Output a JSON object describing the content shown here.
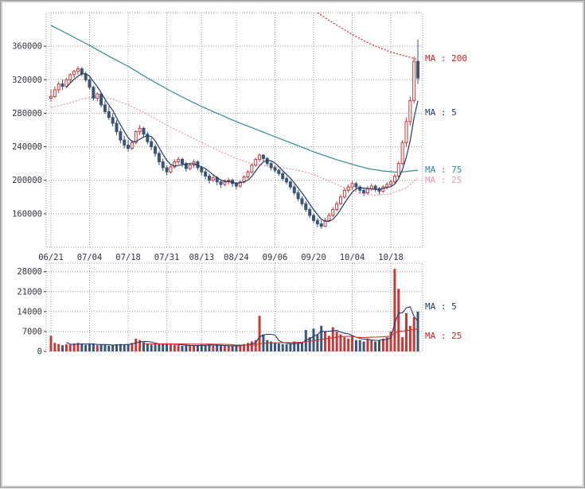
{
  "window": {
    "background": "#ffffff",
    "border_color": "#c9c9c9"
  },
  "chart_data": {
    "type": "candlestick+volume",
    "title": "",
    "grid": true,
    "price_panel": {
      "ylim": [
        120000,
        400000
      ],
      "yticks": [
        160000,
        200000,
        240000,
        280000,
        320000,
        360000
      ]
    },
    "volume_panel": {
      "ylim": [
        0,
        31000
      ],
      "yticks": [
        0,
        7000,
        14000,
        21000,
        28000
      ]
    },
    "xticks": [
      {
        "index": 0,
        "label": "06/21"
      },
      {
        "index": 10,
        "label": "07/04"
      },
      {
        "index": 20,
        "label": "07/18"
      },
      {
        "index": 30,
        "label": "07/31"
      },
      {
        "index": 39,
        "label": "08/13"
      },
      {
        "index": 48,
        "label": "08/24"
      },
      {
        "index": 58,
        "label": "09/06"
      },
      {
        "index": 68,
        "label": "09/20"
      },
      {
        "index": 78,
        "label": "10/04"
      },
      {
        "index": 88,
        "label": "10/18"
      }
    ],
    "candles": [
      [
        298000,
        308000,
        294000,
        300000
      ],
      [
        300000,
        312000,
        298000,
        308000
      ],
      [
        308000,
        318000,
        304000,
        315000
      ],
      [
        315000,
        320000,
        308000,
        312000
      ],
      [
        312000,
        322000,
        310000,
        320000
      ],
      [
        320000,
        328000,
        316000,
        326000
      ],
      [
        326000,
        332000,
        322000,
        330000
      ],
      [
        330000,
        336000,
        326000,
        333000
      ],
      [
        333000,
        335000,
        324000,
        327000
      ],
      [
        327000,
        330000,
        317000,
        320000
      ],
      [
        320000,
        322000,
        308000,
        311000
      ],
      [
        311000,
        313000,
        295000,
        298000
      ],
      [
        298000,
        305000,
        294000,
        303000
      ],
      [
        303000,
        304000,
        287000,
        290000
      ],
      [
        290000,
        295000,
        279000,
        282000
      ],
      [
        282000,
        288000,
        272000,
        275000
      ],
      [
        275000,
        280000,
        264000,
        268000
      ],
      [
        268000,
        272000,
        254000,
        258000
      ],
      [
        258000,
        262000,
        244000,
        248000
      ],
      [
        248000,
        253000,
        238000,
        242000
      ],
      [
        242000,
        248000,
        234000,
        238000
      ],
      [
        238000,
        248000,
        236000,
        245000
      ],
      [
        245000,
        260000,
        243000,
        258000
      ],
      [
        258000,
        266000,
        254000,
        262000
      ],
      [
        262000,
        264000,
        251000,
        255000
      ],
      [
        255000,
        258000,
        243000,
        246000
      ],
      [
        246000,
        250000,
        236000,
        240000
      ],
      [
        240000,
        243000,
        228000,
        232000
      ],
      [
        232000,
        235000,
        218000,
        222000
      ],
      [
        222000,
        226000,
        211000,
        215000
      ],
      [
        215000,
        218000,
        206000,
        210000
      ],
      [
        210000,
        219000,
        208000,
        216000
      ],
      [
        216000,
        225000,
        214000,
        222000
      ],
      [
        222000,
        228000,
        219000,
        225000
      ],
      [
        225000,
        227000,
        216000,
        220000
      ],
      [
        220000,
        222000,
        210000,
        214000
      ],
      [
        214000,
        221000,
        212000,
        218000
      ],
      [
        218000,
        225000,
        215000,
        222000
      ],
      [
        222000,
        224000,
        212000,
        215000
      ],
      [
        215000,
        217000,
        206000,
        210000
      ],
      [
        210000,
        213000,
        201000,
        205000
      ],
      [
        205000,
        208000,
        196000,
        200000
      ],
      [
        200000,
        206000,
        198000,
        203000
      ],
      [
        203000,
        205000,
        194000,
        198000
      ],
      [
        198000,
        201000,
        191000,
        195000
      ],
      [
        195000,
        201000,
        193000,
        198000
      ],
      [
        198000,
        203000,
        195000,
        200000
      ],
      [
        200000,
        202000,
        192000,
        196000
      ],
      [
        196000,
        198000,
        189000,
        193000
      ],
      [
        193000,
        200000,
        191000,
        198000
      ],
      [
        198000,
        206000,
        196000,
        204000
      ],
      [
        204000,
        212000,
        202000,
        210000
      ],
      [
        210000,
        220000,
        208000,
        218000
      ],
      [
        218000,
        227000,
        216000,
        225000
      ],
      [
        225000,
        232000,
        222000,
        230000
      ],
      [
        230000,
        231000,
        222000,
        226000
      ],
      [
        226000,
        228000,
        217000,
        220000
      ],
      [
        220000,
        222000,
        212000,
        215000
      ],
      [
        215000,
        218000,
        209000,
        212000
      ],
      [
        212000,
        214000,
        205000,
        208000
      ],
      [
        208000,
        210000,
        199000,
        202000
      ],
      [
        202000,
        205000,
        195000,
        198000
      ],
      [
        198000,
        200000,
        189000,
        192000
      ],
      [
        192000,
        195000,
        182000,
        185000
      ],
      [
        185000,
        188000,
        175000,
        178000
      ],
      [
        178000,
        181000,
        169000,
        172000
      ],
      [
        172000,
        175000,
        162000,
        165000
      ],
      [
        165000,
        168000,
        155000,
        158000
      ],
      [
        158000,
        161000,
        149000,
        152000
      ],
      [
        152000,
        155000,
        144000,
        148000
      ],
      [
        148000,
        152000,
        142000,
        145000
      ],
      [
        145000,
        155000,
        144000,
        152000
      ],
      [
        152000,
        161000,
        150000,
        158000
      ],
      [
        158000,
        168000,
        156000,
        165000
      ],
      [
        165000,
        175000,
        163000,
        172000
      ],
      [
        172000,
        183000,
        170000,
        180000
      ],
      [
        180000,
        191000,
        178000,
        188000
      ],
      [
        188000,
        195000,
        185000,
        192000
      ],
      [
        192000,
        199000,
        189000,
        196000
      ],
      [
        196000,
        198000,
        188000,
        192000
      ],
      [
        192000,
        194000,
        184000,
        188000
      ],
      [
        188000,
        190000,
        181000,
        185000
      ],
      [
        185000,
        193000,
        183000,
        190000
      ],
      [
        190000,
        196000,
        187000,
        193000
      ],
      [
        193000,
        195000,
        186000,
        190000
      ],
      [
        190000,
        192000,
        183000,
        187000
      ],
      [
        187000,
        194000,
        185000,
        192000
      ],
      [
        192000,
        198000,
        189000,
        195000
      ],
      [
        195000,
        201000,
        192000,
        198000
      ],
      [
        198000,
        208000,
        196000,
        205000
      ],
      [
        205000,
        223000,
        203000,
        220000
      ],
      [
        220000,
        248000,
        218000,
        245000
      ],
      [
        245000,
        275000,
        240000,
        270000
      ],
      [
        270000,
        300000,
        265000,
        295000
      ],
      [
        295000,
        348000,
        292000,
        342000
      ],
      [
        342000,
        368000,
        315000,
        322000
      ]
    ],
    "volumes": [
      5500,
      3000,
      2600,
      2200,
      2500,
      2400,
      2800,
      3000,
      2500,
      2300,
      2500,
      2800,
      2200,
      2400,
      2300,
      2000,
      2200,
      2500,
      2600,
      2400,
      2600,
      3000,
      4500,
      4000,
      3200,
      2600,
      2400,
      2500,
      2700,
      2600,
      2800,
      2400,
      2300,
      2200,
      2000,
      2100,
      2000,
      2200,
      2100,
      2300,
      2200,
      2400,
      2000,
      2100,
      2000,
      1900,
      2000,
      1900,
      2000,
      2200,
      2600,
      3000,
      3500,
      4000,
      12500,
      6000,
      4000,
      3500,
      3000,
      2800,
      2600,
      2500,
      2600,
      3500,
      3000,
      3200,
      7500,
      5000,
      8000,
      6000,
      9000,
      7000,
      5500,
      8500,
      7000,
      6000,
      5000,
      4500,
      5500,
      4000,
      4000,
      3500,
      4500,
      4000,
      3500,
      4000,
      4500,
      5000,
      7000,
      29000,
      22000,
      5000,
      13500,
      9000,
      12000,
      14000
    ],
    "ma5_period": 5,
    "ma25_points": [
      {
        "i": 0,
        "v": 287000
      },
      {
        "i": 4,
        "v": 291000
      },
      {
        "i": 8,
        "v": 297000
      },
      {
        "i": 12,
        "v": 300000
      },
      {
        "i": 16,
        "v": 297000
      },
      {
        "i": 20,
        "v": 290000
      },
      {
        "i": 24,
        "v": 281000
      },
      {
        "i": 28,
        "v": 271000
      },
      {
        "i": 32,
        "v": 261000
      },
      {
        "i": 36,
        "v": 252000
      },
      {
        "i": 40,
        "v": 243000
      },
      {
        "i": 44,
        "v": 234000
      },
      {
        "i": 48,
        "v": 226000
      },
      {
        "i": 52,
        "v": 220000
      },
      {
        "i": 56,
        "v": 217000
      },
      {
        "i": 60,
        "v": 215000
      },
      {
        "i": 64,
        "v": 212000
      },
      {
        "i": 68,
        "v": 207000
      },
      {
        "i": 72,
        "v": 199000
      },
      {
        "i": 76,
        "v": 191000
      },
      {
        "i": 80,
        "v": 185000
      },
      {
        "i": 84,
        "v": 182000
      },
      {
        "i": 88,
        "v": 184000
      },
      {
        "i": 92,
        "v": 191000
      },
      {
        "i": 95,
        "v": 203000
      }
    ],
    "ma75_points": [
      {
        "i": 0,
        "v": 385000
      },
      {
        "i": 5,
        "v": 373000
      },
      {
        "i": 10,
        "v": 361000
      },
      {
        "i": 15,
        "v": 348000
      },
      {
        "i": 20,
        "v": 336000
      },
      {
        "i": 25,
        "v": 322000
      },
      {
        "i": 30,
        "v": 309000
      },
      {
        "i": 35,
        "v": 297000
      },
      {
        "i": 39,
        "v": 288000
      },
      {
        "i": 44,
        "v": 278000
      },
      {
        "i": 48,
        "v": 270000
      },
      {
        "i": 53,
        "v": 261000
      },
      {
        "i": 58,
        "v": 252000
      },
      {
        "i": 63,
        "v": 243000
      },
      {
        "i": 68,
        "v": 234000
      },
      {
        "i": 73,
        "v": 226000
      },
      {
        "i": 78,
        "v": 219000
      },
      {
        "i": 82,
        "v": 214000
      },
      {
        "i": 86,
        "v": 211000
      },
      {
        "i": 90,
        "v": 209500
      },
      {
        "i": 95,
        "v": 212000
      }
    ],
    "ma200_points": [
      {
        "i": 69,
        "v": 400000
      },
      {
        "i": 73,
        "v": 388000
      },
      {
        "i": 78,
        "v": 374000
      },
      {
        "i": 83,
        "v": 362000
      },
      {
        "i": 88,
        "v": 353000
      },
      {
        "i": 92,
        "v": 348000
      },
      {
        "i": 95,
        "v": 344000
      }
    ],
    "legend_price": [
      {
        "id": "ma200",
        "label": "MA : 200",
        "color": "#cc2222",
        "y": 76
      },
      {
        "id": "ma5",
        "label": "MA : 5",
        "color": "#223a66",
        "y": 144
      },
      {
        "id": "ma75",
        "label": "MA : 75",
        "color": "#2e8b98",
        "y": 216
      },
      {
        "id": "ma25",
        "label": "MA : 25",
        "color": "#ee97a8",
        "y": 229
      }
    ],
    "legend_volume": [
      {
        "id": "vma5",
        "label": "MA : 5",
        "color": "#223a66",
        "y": 388
      },
      {
        "id": "vma25",
        "label": "MA : 25",
        "color": "#cc2222",
        "y": 425
      }
    ],
    "colors": {
      "up": "#c43a3a",
      "down": "#3a5578",
      "ma5": "#223a66",
      "ma25": "#f09aaa",
      "ma75": "#2e8b98",
      "ma200": "#cc3333",
      "grid": "#9a9aa6",
      "axis_text": "#333344"
    }
  }
}
